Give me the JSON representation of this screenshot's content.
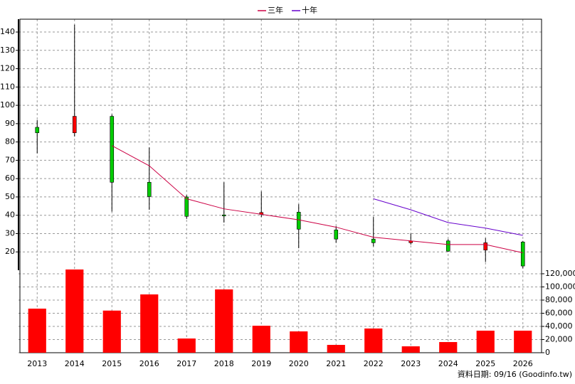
{
  "chart_data": {
    "type": "candlestick",
    "categories": [
      "2013",
      "2014",
      "2015",
      "2016",
      "2017",
      "2018",
      "2019",
      "2020",
      "2021",
      "2022",
      "2023",
      "2024",
      "2025",
      "2026"
    ],
    "open": [
      88,
      85,
      94,
      58,
      50,
      40.2,
      40.5,
      41.7,
      32,
      27,
      25,
      26,
      21,
      25.4
    ],
    "high": [
      92,
      144,
      95,
      77,
      51,
      58,
      53,
      46,
      34,
      39,
      30,
      27,
      27.5,
      26
    ],
    "low": [
      73.8,
      83,
      42,
      43,
      38,
      36,
      39,
      22,
      25,
      23,
      24,
      20,
      14.5,
      11
    ],
    "close": [
      85,
      94,
      58,
      50.2,
      39.4,
      39.8,
      41.5,
      32.4,
      27,
      25,
      26,
      20.4,
      25,
      12.3
    ],
    "up_color": "#ff0000",
    "down_color": "#00cc00",
    "series": [
      {
        "name": "三年",
        "color": "#cc0044",
        "values": [
          null,
          null,
          78,
          67,
          49,
          43.5,
          40.5,
          37.5,
          33.5,
          28,
          26,
          24,
          24,
          19.5
        ]
      },
      {
        "name": "十年",
        "color": "#6600cc",
        "values": [
          null,
          null,
          null,
          null,
          null,
          null,
          null,
          null,
          null,
          49,
          43,
          36,
          33,
          29
        ]
      }
    ],
    "ylim": [
      10,
      147
    ],
    "yticks": [
      20,
      30,
      40,
      50,
      60,
      70,
      80,
      90,
      100,
      110,
      120,
      130,
      140
    ],
    "volume": {
      "type": "bar",
      "color": "#ff0000",
      "values": [
        67000,
        126500,
        64000,
        88600,
        21600,
        96200,
        41000,
        32400,
        11900,
        36800,
        9700,
        16200,
        33500,
        33500
      ],
      "ylim": [
        0,
        127000
      ],
      "yticks": [
        0,
        {
          "value": 20000,
          "label": "20,000"
        },
        {
          "value": 40000,
          "label": "40,000"
        },
        {
          "value": 60000,
          "label": "60,000"
        },
        {
          "value": 80000,
          "label": "80,000"
        },
        {
          "value": 100000,
          "label": "100,000"
        },
        {
          "value": 120000,
          "label": "120,000"
        }
      ]
    },
    "grid": true,
    "footer": "資料日期: 09/16  (Goodinfo.tw)"
  }
}
